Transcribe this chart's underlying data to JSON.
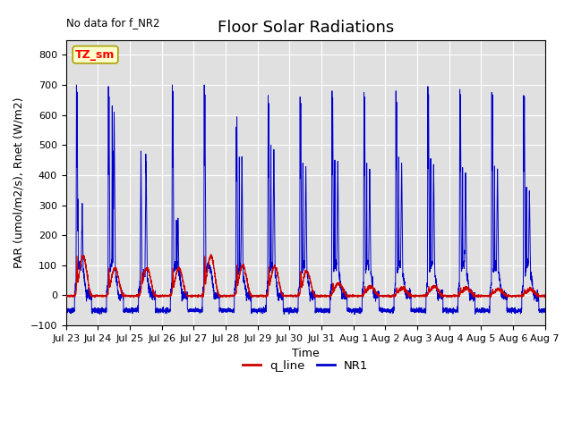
{
  "title": "Floor Solar Radiations",
  "xlabel": "Time",
  "ylabel": "PAR (umol/m2/s), Rnet (W/m2)",
  "annotation": "No data for f_NR2",
  "legend_label": "TZ_sm",
  "ylim": [
    -100,
    850
  ],
  "yticks": [
    -100,
    0,
    100,
    200,
    300,
    400,
    500,
    600,
    700,
    800
  ],
  "n_days": 15,
  "tick_labels": [
    "Jul 23",
    "Jul 24",
    "Jul 25",
    "Jul 26",
    "Jul 27",
    "Jul 28",
    "Jul 29",
    "Jul 30",
    "Jul 31",
    "Aug 1",
    "Aug 2",
    "Aug 3",
    "Aug 4",
    "Aug 5",
    "Aug 6",
    "Aug 7"
  ],
  "bg_color": "#e0e0e0",
  "q_line_color": "#cc0000",
  "NR1_color": "#0000cc",
  "title_fontsize": 13,
  "label_fontsize": 9,
  "tick_fontsize": 8,
  "nr1_day_peaks": [
    700,
    695,
    480,
    700,
    700,
    620,
    665,
    660,
    680,
    675,
    675,
    700,
    695,
    685,
    675
  ],
  "nr1_day_peaks2": [
    320,
    630,
    470,
    250,
    0,
    460,
    500,
    440,
    450,
    440,
    460,
    455,
    425,
    430,
    360
  ],
  "q_day_peaks": [
    130,
    90,
    90,
    90,
    130,
    100,
    95,
    80,
    40,
    30,
    25,
    30,
    25,
    20,
    20
  ]
}
